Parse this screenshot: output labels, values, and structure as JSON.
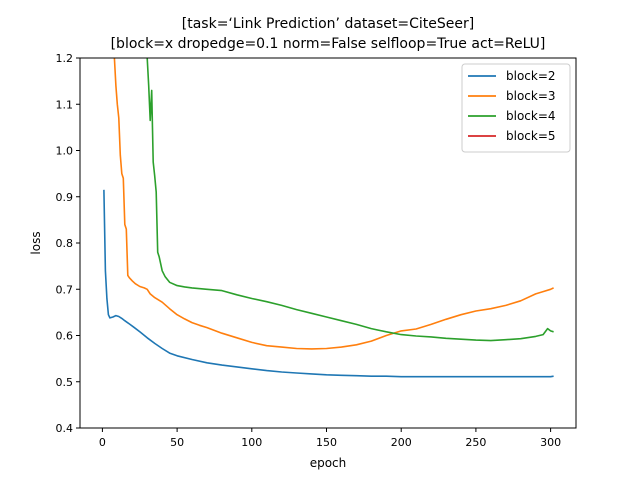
{
  "chart_data": {
    "type": "line",
    "title_line1": "[task=‘Link Prediction’ dataset=CiteSeer]",
    "title_line2": "[block=x dropedge=0.1 norm=False selfloop=True act=ReLU]",
    "xlabel": "epoch",
    "ylabel": "loss",
    "xlim": [
      -15,
      317
    ],
    "ylim": [
      0.4,
      1.2
    ],
    "xticks": [
      0,
      50,
      100,
      150,
      200,
      250,
      300
    ],
    "yticks": [
      0.4,
      0.5,
      0.6,
      0.7,
      0.8,
      0.9,
      1.0,
      1.1,
      1.2
    ],
    "grid": false,
    "legend_position": "top-right",
    "series": [
      {
        "name": "block=2",
        "color": "#1f77b4",
        "points": [
          [
            1,
            0.915
          ],
          [
            2,
            0.74
          ],
          [
            3,
            0.68
          ],
          [
            4,
            0.645
          ],
          [
            5,
            0.638
          ],
          [
            7,
            0.64
          ],
          [
            9,
            0.643
          ],
          [
            11,
            0.641
          ],
          [
            13,
            0.637
          ],
          [
            15,
            0.632
          ],
          [
            18,
            0.625
          ],
          [
            21,
            0.618
          ],
          [
            25,
            0.608
          ],
          [
            30,
            0.595
          ],
          [
            35,
            0.583
          ],
          [
            40,
            0.572
          ],
          [
            45,
            0.562
          ],
          [
            50,
            0.556
          ],
          [
            60,
            0.548
          ],
          [
            70,
            0.541
          ],
          [
            80,
            0.536
          ],
          [
            90,
            0.532
          ],
          [
            100,
            0.528
          ],
          [
            110,
            0.524
          ],
          [
            120,
            0.521
          ],
          [
            130,
            0.519
          ],
          [
            140,
            0.517
          ],
          [
            150,
            0.515
          ],
          [
            160,
            0.514
          ],
          [
            170,
            0.513
          ],
          [
            180,
            0.512
          ],
          [
            190,
            0.512
          ],
          [
            200,
            0.511
          ],
          [
            210,
            0.511
          ],
          [
            220,
            0.511
          ],
          [
            230,
            0.511
          ],
          [
            240,
            0.511
          ],
          [
            250,
            0.511
          ],
          [
            260,
            0.511
          ],
          [
            270,
            0.511
          ],
          [
            280,
            0.511
          ],
          [
            290,
            0.511
          ],
          [
            300,
            0.511
          ],
          [
            302,
            0.512
          ]
        ]
      },
      {
        "name": "block=3",
        "color": "#ff7f0e",
        "points": [
          [
            8,
            1.2
          ],
          [
            9,
            1.14
          ],
          [
            10,
            1.1
          ],
          [
            11,
            1.07
          ],
          [
            12,
            0.99
          ],
          [
            13,
            0.95
          ],
          [
            14,
            0.94
          ],
          [
            15,
            0.84
          ],
          [
            16,
            0.83
          ],
          [
            17,
            0.73
          ],
          [
            18,
            0.725
          ],
          [
            20,
            0.718
          ],
          [
            22,
            0.712
          ],
          [
            25,
            0.706
          ],
          [
            28,
            0.703
          ],
          [
            30,
            0.7
          ],
          [
            32,
            0.69
          ],
          [
            35,
            0.682
          ],
          [
            40,
            0.672
          ],
          [
            45,
            0.658
          ],
          [
            50,
            0.645
          ],
          [
            55,
            0.636
          ],
          [
            60,
            0.628
          ],
          [
            65,
            0.622
          ],
          [
            70,
            0.617
          ],
          [
            80,
            0.605
          ],
          [
            90,
            0.595
          ],
          [
            100,
            0.585
          ],
          [
            110,
            0.578
          ],
          [
            120,
            0.575
          ],
          [
            130,
            0.572
          ],
          [
            140,
            0.571
          ],
          [
            150,
            0.572
          ],
          [
            160,
            0.575
          ],
          [
            170,
            0.58
          ],
          [
            180,
            0.588
          ],
          [
            190,
            0.6
          ],
          [
            200,
            0.61
          ],
          [
            210,
            0.614
          ],
          [
            220,
            0.624
          ],
          [
            230,
            0.635
          ],
          [
            240,
            0.645
          ],
          [
            250,
            0.653
          ],
          [
            260,
            0.658
          ],
          [
            270,
            0.665
          ],
          [
            280,
            0.675
          ],
          [
            290,
            0.69
          ],
          [
            295,
            0.695
          ],
          [
            300,
            0.7
          ],
          [
            302,
            0.703
          ]
        ]
      },
      {
        "name": "block=4",
        "color": "#2ca02c",
        "points": [
          [
            30,
            1.2
          ],
          [
            31,
            1.14
          ],
          [
            32,
            1.065
          ],
          [
            33,
            1.13
          ],
          [
            34,
            0.975
          ],
          [
            35,
            0.945
          ],
          [
            36,
            0.91
          ],
          [
            37,
            0.78
          ],
          [
            38,
            0.77
          ],
          [
            40,
            0.74
          ],
          [
            42,
            0.727
          ],
          [
            45,
            0.715
          ],
          [
            50,
            0.708
          ],
          [
            55,
            0.705
          ],
          [
            60,
            0.703
          ],
          [
            70,
            0.7
          ],
          [
            80,
            0.697
          ],
          [
            90,
            0.688
          ],
          [
            100,
            0.68
          ],
          [
            110,
            0.673
          ],
          [
            120,
            0.665
          ],
          [
            130,
            0.656
          ],
          [
            140,
            0.648
          ],
          [
            150,
            0.64
          ],
          [
            160,
            0.632
          ],
          [
            170,
            0.624
          ],
          [
            180,
            0.615
          ],
          [
            190,
            0.608
          ],
          [
            200,
            0.602
          ],
          [
            210,
            0.599
          ],
          [
            220,
            0.597
          ],
          [
            230,
            0.594
          ],
          [
            240,
            0.592
          ],
          [
            250,
            0.59
          ],
          [
            260,
            0.589
          ],
          [
            270,
            0.591
          ],
          [
            280,
            0.593
          ],
          [
            290,
            0.598
          ],
          [
            295,
            0.602
          ],
          [
            298,
            0.615
          ],
          [
            300,
            0.61
          ],
          [
            302,
            0.608
          ]
        ]
      },
      {
        "name": "block=5",
        "color": "#d62728",
        "points": []
      }
    ]
  }
}
